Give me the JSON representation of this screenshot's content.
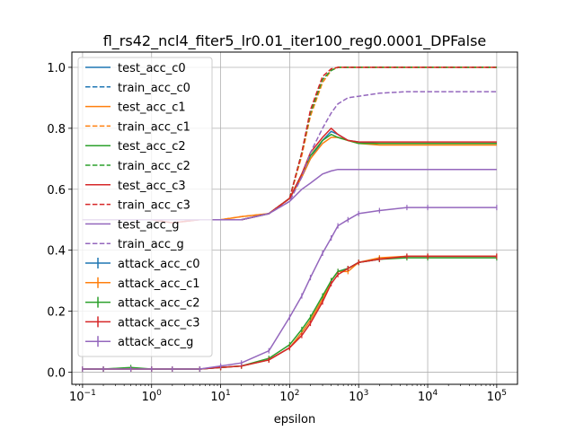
{
  "chart_data": {
    "type": "line",
    "title": "fl_rs42_ncl4_fiter5_lr0.01_iter100_reg0.0001_DPFalse",
    "xlabel": "epsilon",
    "ylabel": "",
    "xscale": "log",
    "xlim": [
      0.07,
      200000
    ],
    "ylim": [
      -0.04,
      1.05
    ],
    "grid": true,
    "legend_position": "upper-left",
    "x_ticks": [
      {
        "value": 0.1,
        "base": "10",
        "exp": "−1"
      },
      {
        "value": 1,
        "base": "10",
        "exp": "0"
      },
      {
        "value": 10,
        "base": "10",
        "exp": "1"
      },
      {
        "value": 100,
        "base": "10",
        "exp": "2"
      },
      {
        "value": 1000,
        "base": "10",
        "exp": "3"
      },
      {
        "value": 10000,
        "base": "10",
        "exp": "4"
      },
      {
        "value": 100000,
        "base": "10",
        "exp": "5"
      }
    ],
    "y_ticks": [
      {
        "value": 0.0,
        "label": "0.0"
      },
      {
        "value": 0.2,
        "label": "0.2"
      },
      {
        "value": 0.4,
        "label": "0.4"
      },
      {
        "value": 0.6,
        "label": "0.6"
      },
      {
        "value": 0.8,
        "label": "0.8"
      },
      {
        "value": 1.0,
        "label": "1.0"
      }
    ],
    "x": [
      0.1,
      0.2,
      0.5,
      1,
      2,
      5,
      10,
      20,
      50,
      100,
      150,
      200,
      300,
      400,
      500,
      700,
      1000,
      2000,
      5000,
      10000,
      100000
    ],
    "series": [
      {
        "name": "test_acc_c0",
        "color": "#1f77b4",
        "style": "solid",
        "errorbar": false,
        "values": [
          0.5,
          0.5,
          0.5,
          0.5,
          0.5,
          0.5,
          0.5,
          0.5,
          0.52,
          0.57,
          0.64,
          0.7,
          0.76,
          0.79,
          0.78,
          0.76,
          0.755,
          0.75,
          0.75,
          0.75,
          0.75
        ]
      },
      {
        "name": "train_acc_c0",
        "color": "#1f77b4",
        "style": "dashed",
        "errorbar": false,
        "values": [
          0.5,
          0.5,
          0.5,
          0.5,
          0.5,
          0.5,
          0.5,
          0.5,
          0.52,
          0.57,
          0.72,
          0.85,
          0.96,
          0.99,
          1.0,
          1.0,
          1.0,
          1.0,
          1.0,
          1.0,
          1.0
        ]
      },
      {
        "name": "test_acc_c1",
        "color": "#ff7f0e",
        "style": "solid",
        "errorbar": false,
        "values": [
          0.5,
          0.5,
          0.5,
          0.5,
          0.5,
          0.5,
          0.5,
          0.51,
          0.52,
          0.57,
          0.64,
          0.7,
          0.75,
          0.77,
          0.77,
          0.76,
          0.75,
          0.745,
          0.745,
          0.745,
          0.745
        ]
      },
      {
        "name": "train_acc_c1",
        "color": "#ff7f0e",
        "style": "dashed",
        "errorbar": false,
        "values": [
          0.5,
          0.5,
          0.5,
          0.5,
          0.5,
          0.5,
          0.5,
          0.51,
          0.52,
          0.57,
          0.71,
          0.84,
          0.95,
          0.99,
          1.0,
          1.0,
          1.0,
          1.0,
          1.0,
          1.0,
          1.0
        ]
      },
      {
        "name": "test_acc_c2",
        "color": "#2ca02c",
        "style": "solid",
        "errorbar": false,
        "values": [
          0.5,
          0.5,
          0.5,
          0.5,
          0.5,
          0.5,
          0.5,
          0.5,
          0.52,
          0.57,
          0.65,
          0.71,
          0.76,
          0.78,
          0.77,
          0.76,
          0.75,
          0.75,
          0.75,
          0.75,
          0.75
        ]
      },
      {
        "name": "train_acc_c2",
        "color": "#2ca02c",
        "style": "dashed",
        "errorbar": false,
        "values": [
          0.5,
          0.5,
          0.5,
          0.5,
          0.5,
          0.5,
          0.5,
          0.5,
          0.52,
          0.57,
          0.72,
          0.85,
          0.96,
          0.99,
          1.0,
          1.0,
          1.0,
          1.0,
          1.0,
          1.0,
          1.0
        ]
      },
      {
        "name": "test_acc_c3",
        "color": "#d62728",
        "style": "solid",
        "errorbar": false,
        "values": [
          0.5,
          0.5,
          0.5,
          0.5,
          0.49,
          0.5,
          0.5,
          0.5,
          0.52,
          0.57,
          0.65,
          0.72,
          0.77,
          0.8,
          0.78,
          0.76,
          0.755,
          0.755,
          0.755,
          0.755,
          0.755
        ]
      },
      {
        "name": "train_acc_c3",
        "color": "#d62728",
        "style": "dashed",
        "errorbar": false,
        "values": [
          0.5,
          0.5,
          0.5,
          0.5,
          0.49,
          0.5,
          0.5,
          0.5,
          0.52,
          0.57,
          0.72,
          0.86,
          0.97,
          0.995,
          1.0,
          1.0,
          1.0,
          1.0,
          1.0,
          1.0,
          1.0
        ]
      },
      {
        "name": "test_acc_g",
        "color": "#9467bd",
        "style": "solid",
        "errorbar": false,
        "values": [
          0.5,
          0.5,
          0.5,
          0.5,
          0.5,
          0.5,
          0.5,
          0.5,
          0.52,
          0.56,
          0.6,
          0.62,
          0.65,
          0.66,
          0.665,
          0.665,
          0.665,
          0.665,
          0.665,
          0.665,
          0.665
        ]
      },
      {
        "name": "train_acc_g",
        "color": "#9467bd",
        "style": "dashed",
        "errorbar": false,
        "values": [
          0.5,
          0.5,
          0.5,
          0.5,
          0.5,
          0.5,
          0.5,
          0.5,
          0.52,
          0.56,
          0.64,
          0.72,
          0.8,
          0.85,
          0.88,
          0.9,
          0.905,
          0.915,
          0.92,
          0.92,
          0.92
        ]
      },
      {
        "name": "attack_acc_c0",
        "color": "#1f77b4",
        "style": "solid",
        "errorbar": true,
        "values": [
          0.01,
          0.01,
          0.01,
          0.01,
          0.01,
          0.01,
          0.015,
          0.02,
          0.04,
          0.08,
          0.13,
          0.17,
          0.24,
          0.3,
          0.33,
          0.34,
          0.36,
          0.37,
          0.38,
          0.38,
          0.38
        ]
      },
      {
        "name": "attack_acc_c1",
        "color": "#ff7f0e",
        "style": "solid",
        "errorbar": true,
        "values": [
          0.01,
          0.01,
          0.01,
          0.01,
          0.01,
          0.01,
          0.015,
          0.02,
          0.04,
          0.08,
          0.13,
          0.17,
          0.24,
          0.3,
          0.33,
          0.33,
          0.36,
          0.375,
          0.38,
          0.38,
          0.38
        ]
      },
      {
        "name": "attack_acc_c2",
        "color": "#2ca02c",
        "style": "solid",
        "errorbar": true,
        "values": [
          0.01,
          0.01,
          0.015,
          0.01,
          0.01,
          0.01,
          0.015,
          0.02,
          0.045,
          0.09,
          0.14,
          0.18,
          0.25,
          0.3,
          0.33,
          0.34,
          0.36,
          0.37,
          0.375,
          0.375,
          0.375
        ]
      },
      {
        "name": "attack_acc_c3",
        "color": "#d62728",
        "style": "solid",
        "errorbar": true,
        "values": [
          0.01,
          0.01,
          0.01,
          0.01,
          0.01,
          0.01,
          0.015,
          0.02,
          0.04,
          0.08,
          0.12,
          0.16,
          0.23,
          0.29,
          0.32,
          0.34,
          0.36,
          0.37,
          0.38,
          0.38,
          0.38
        ]
      },
      {
        "name": "attack_acc_g",
        "color": "#9467bd",
        "style": "solid",
        "errorbar": true,
        "values": [
          0.01,
          0.01,
          0.01,
          0.01,
          0.01,
          0.01,
          0.02,
          0.03,
          0.07,
          0.18,
          0.25,
          0.31,
          0.39,
          0.44,
          0.48,
          0.5,
          0.52,
          0.53,
          0.54,
          0.54,
          0.54
        ]
      }
    ]
  }
}
